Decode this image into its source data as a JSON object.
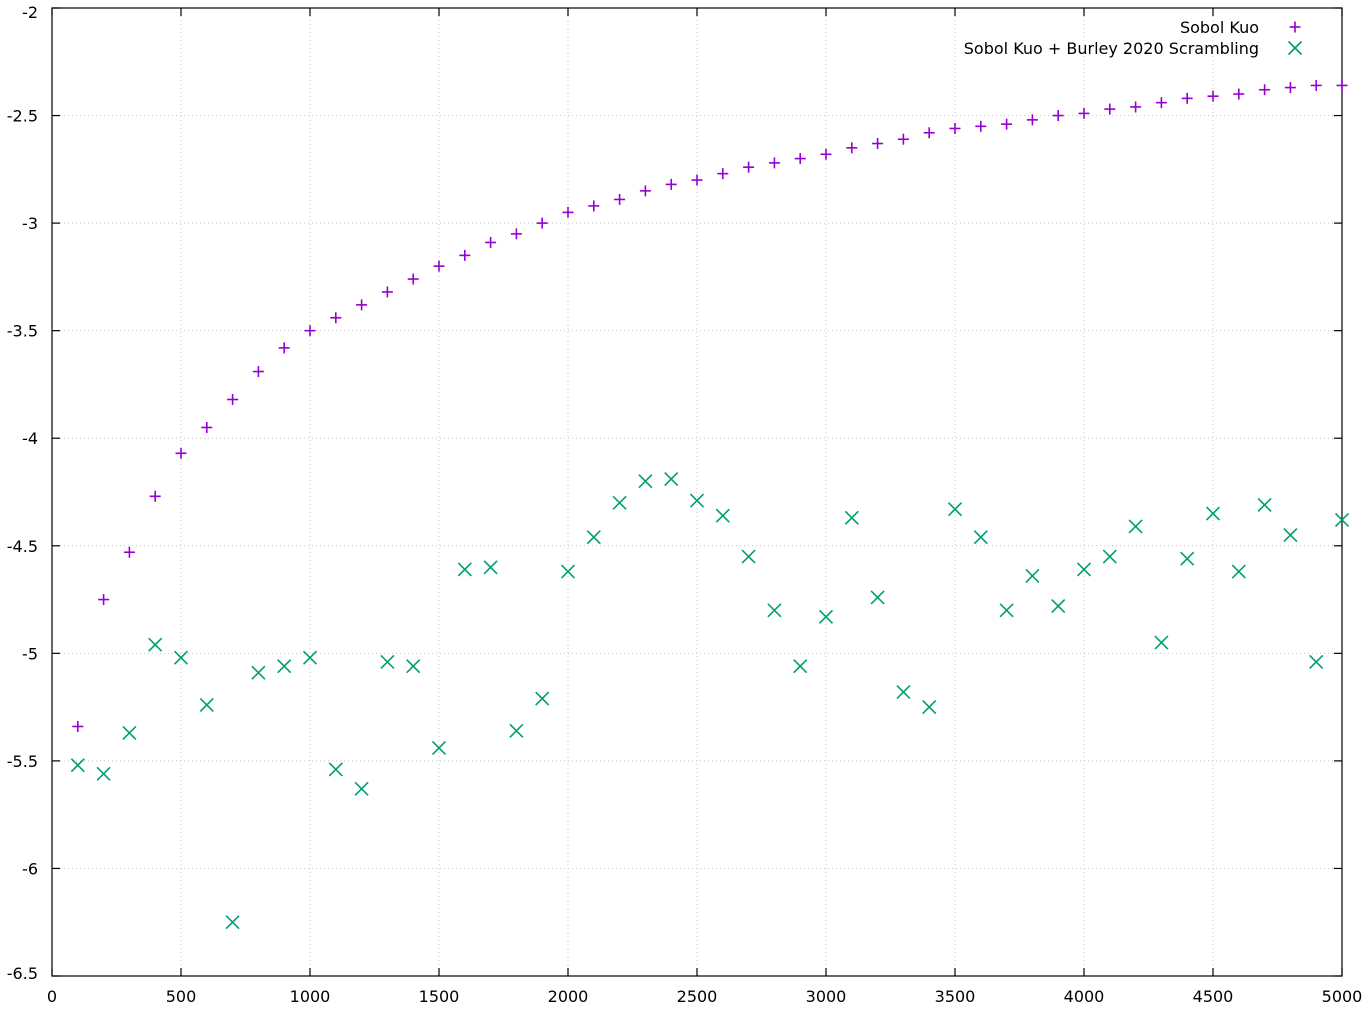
{
  "chart_data": {
    "type": "scatter",
    "xlim": [
      0,
      5000
    ],
    "ylim": [
      -6.5,
      -2
    ],
    "x_ticks": [
      0,
      500,
      1000,
      1500,
      2000,
      2500,
      3000,
      3500,
      4000,
      4500,
      5000
    ],
    "y_ticks": [
      -2,
      -2.5,
      -3,
      -3.5,
      -4,
      -4.5,
      -5,
      -5.5,
      -6,
      -6.5
    ],
    "x_tick_labels": [
      "0",
      "500",
      "1000",
      "1500",
      "2000",
      "2500",
      "3000",
      "3500",
      "4000",
      "4500",
      "5000"
    ],
    "y_tick_labels": [
      "-2",
      "-2.5",
      "-3",
      "-3.5",
      "-4",
      "-4.5",
      "-5",
      "-5.5",
      "-6",
      "-6.5"
    ],
    "grid": true,
    "legend_position": "top-right",
    "x": [
      100,
      200,
      300,
      400,
      500,
      600,
      700,
      800,
      900,
      1000,
      1100,
      1200,
      1300,
      1400,
      1500,
      1600,
      1700,
      1800,
      1900,
      2000,
      2100,
      2200,
      2300,
      2400,
      2500,
      2600,
      2700,
      2800,
      2900,
      3000,
      3100,
      3200,
      3300,
      3400,
      3500,
      3600,
      3700,
      3800,
      3900,
      4000,
      4100,
      4200,
      4300,
      4400,
      4500,
      4600,
      4700,
      4800,
      4900,
      5000
    ],
    "series": [
      {
        "name": "Sobol Kuo",
        "marker": "plus",
        "color": "#9400d3",
        "values": [
          -5.34,
          -4.75,
          -4.53,
          -4.27,
          -4.07,
          -3.95,
          -3.82,
          -3.69,
          -3.58,
          -3.5,
          -3.44,
          -3.38,
          -3.32,
          -3.26,
          -3.2,
          -3.15,
          -3.09,
          -3.05,
          -3.0,
          -2.95,
          -2.92,
          -2.89,
          -2.85,
          -2.82,
          -2.8,
          -2.77,
          -2.74,
          -2.72,
          -2.7,
          -2.68,
          -2.65,
          -2.63,
          -2.61,
          -2.58,
          -2.56,
          -2.55,
          -2.54,
          -2.52,
          -2.5,
          -2.49,
          -2.47,
          -2.46,
          -2.44,
          -2.42,
          -2.41,
          -2.4,
          -2.38,
          -2.37,
          -2.36,
          -2.36
        ]
      },
      {
        "name": "Sobol Kuo + Burley 2020 Scrambling",
        "marker": "cross",
        "color": "#009e73",
        "values": [
          -5.52,
          -5.56,
          -5.37,
          -4.96,
          -5.02,
          -5.24,
          -6.25,
          -5.09,
          -5.06,
          -5.02,
          -5.54,
          -5.63,
          -5.04,
          -5.06,
          -5.44,
          -4.61,
          -4.6,
          -5.36,
          -5.21,
          -4.62,
          -4.46,
          -4.3,
          -4.2,
          -4.19,
          -4.29,
          -4.36,
          -4.55,
          -4.8,
          -5.06,
          -4.83,
          -4.37,
          -4.74,
          -5.18,
          -5.25,
          -4.33,
          -4.46,
          -4.8,
          -4.64,
          -4.78,
          -4.61,
          -4.55,
          -4.41,
          -4.95,
          -4.56,
          -4.35,
          -4.62,
          -4.31,
          -4.45,
          -5.04,
          -4.38
        ]
      }
    ]
  }
}
